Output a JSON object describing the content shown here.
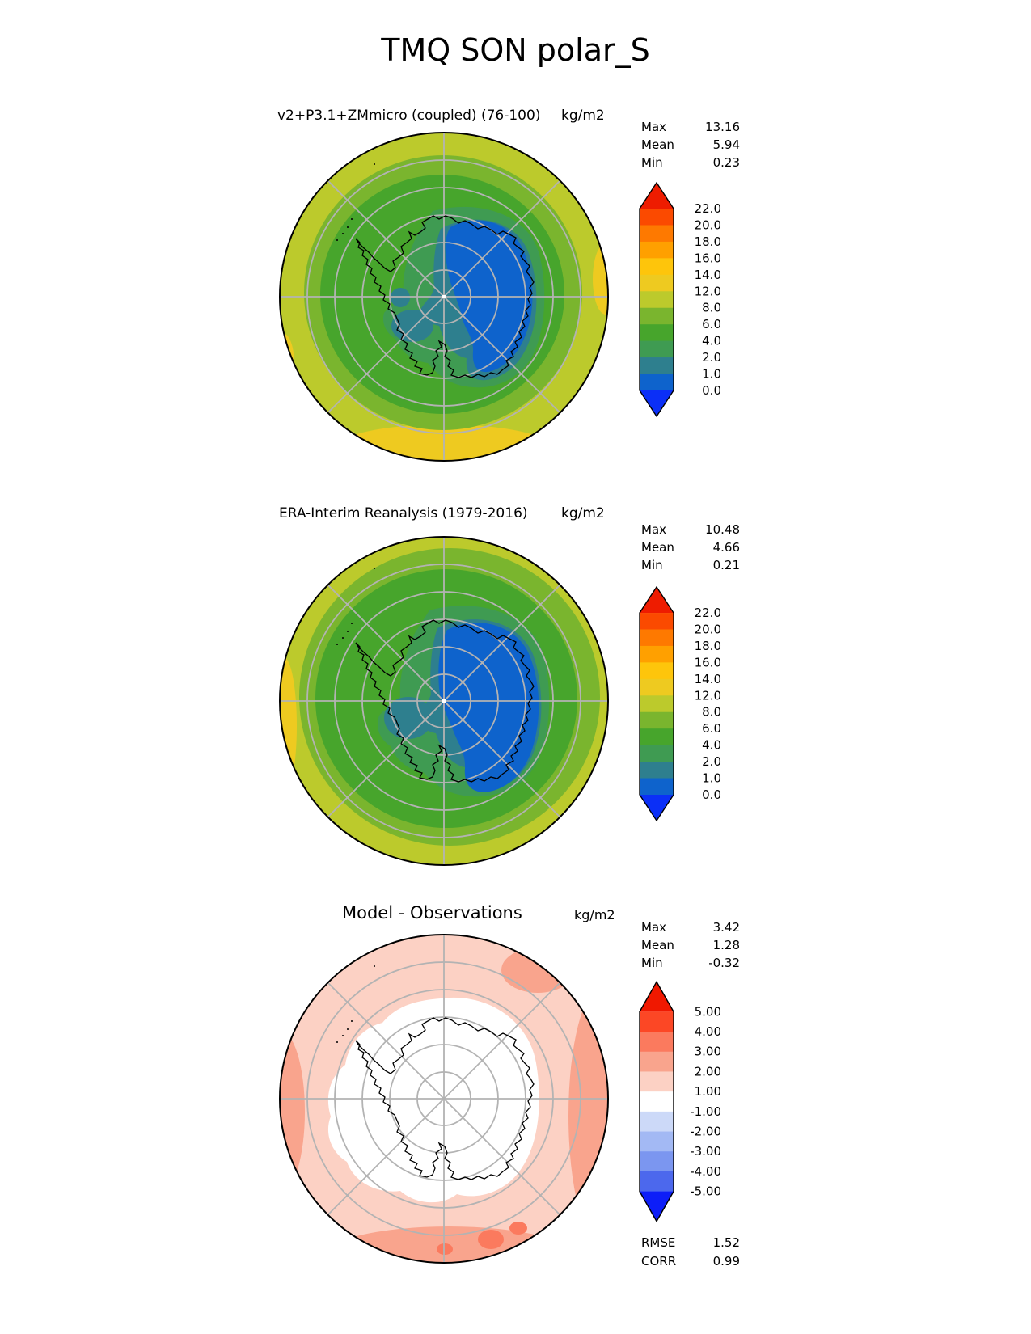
{
  "title": "TMQ SON polar_S",
  "panels": [
    {
      "title": "v2+P3.1+ZMmicro (coupled) (76-100)",
      "units": "kg/m2",
      "stats": {
        "max_label": "Max",
        "max": "13.16",
        "mean_label": "Mean",
        "mean": "5.94",
        "min_label": "Min",
        "min": "0.23"
      }
    },
    {
      "title": "ERA-Interim Reanalysis (1979-2016)",
      "units": "kg/m2",
      "stats": {
        "max_label": "Max",
        "max": "10.48",
        "mean_label": "Mean",
        "mean": "4.66",
        "min_label": "Min",
        "min": "0.21"
      }
    },
    {
      "title": "Model - Observations",
      "units": "kg/m2",
      "stats": {
        "max_label": "Max",
        "max": "3.42",
        "mean_label": "Mean",
        "mean": "1.28",
        "min_label": "Min",
        "min": "-0.32"
      },
      "metrics": {
        "rmse_label": "RMSE",
        "rmse": "1.52",
        "corr_label": "CORR",
        "corr": "0.99"
      }
    }
  ],
  "chart_data": [
    {
      "type": "heatmap",
      "subtype": "south-polar-stereographic-contour-map",
      "variable": "TMQ",
      "season": "SON",
      "region": "polar_S",
      "title": "v2+P3.1+ZMmicro (coupled) (76-100)",
      "units": "kg/m2",
      "stats": {
        "Max": 13.16,
        "Mean": 5.94,
        "Min": 0.23
      },
      "colorbar": {
        "boundaries": [
          0,
          1,
          2,
          4,
          6,
          8,
          12,
          14,
          16,
          18,
          20,
          22
        ],
        "tick_labels": [
          "22.0",
          "20.0",
          "18.0",
          "16.0",
          "14.0",
          "12.0",
          "8.0",
          "6.0",
          "4.0",
          "2.0",
          "1.0",
          "0.0"
        ],
        "colors": [
          "#0e63cc",
          "#2e7f8e",
          "#3f9b52",
          "#47a52c",
          "#7ab52e",
          "#bcca2c",
          "#eeca20",
          "#fec50b",
          "#ffa000",
          "#fe7900",
          "#fb4a00"
        ],
        "extend_under": "#0b2ff7",
        "extend_over": "#ee1c00"
      }
    },
    {
      "type": "heatmap",
      "subtype": "south-polar-stereographic-contour-map",
      "variable": "TMQ",
      "season": "SON",
      "region": "polar_S",
      "title": "ERA-Interim Reanalysis (1979-2016)",
      "units": "kg/m2",
      "stats": {
        "Max": 10.48,
        "Mean": 4.66,
        "Min": 0.21
      },
      "colorbar": {
        "boundaries": [
          0,
          1,
          2,
          4,
          6,
          8,
          12,
          14,
          16,
          18,
          20,
          22
        ],
        "tick_labels": [
          "22.0",
          "20.0",
          "18.0",
          "16.0",
          "14.0",
          "12.0",
          "8.0",
          "6.0",
          "4.0",
          "2.0",
          "1.0",
          "0.0"
        ],
        "colors": [
          "#0e63cc",
          "#2e7f8e",
          "#3f9b52",
          "#47a52c",
          "#7ab52e",
          "#bcca2c",
          "#eeca20",
          "#fec50b",
          "#ffa000",
          "#fe7900",
          "#fb4a00"
        ],
        "extend_under": "#0b2ff7",
        "extend_over": "#ee1c00"
      }
    },
    {
      "type": "heatmap",
      "subtype": "south-polar-stereographic-contour-map-difference",
      "variable": "TMQ",
      "season": "SON",
      "region": "polar_S",
      "title": "Model - Observations",
      "units": "kg/m2",
      "stats": {
        "Max": 3.42,
        "Mean": 1.28,
        "Min": -0.32,
        "RMSE": 1.52,
        "CORR": 0.99
      },
      "colorbar": {
        "boundaries": [
          -5,
          -4,
          -3,
          -2,
          -1,
          1,
          2,
          3,
          4,
          5
        ],
        "tick_labels": [
          "5.00",
          "4.00",
          "3.00",
          "2.00",
          "1.00",
          "-1.00",
          "-2.00",
          "-3.00",
          "-4.00",
          "-5.00"
        ],
        "colors": [
          "#4c68ed",
          "#7b96f0",
          "#a3b9f4",
          "#ccd9f8",
          "#ffffff",
          "#fcd1c4",
          "#f9a48d",
          "#fb7a5e",
          "#fc4725"
        ],
        "extend_under": "#0d1ef8",
        "extend_over": "#f01800"
      }
    }
  ],
  "graticule_color": "#b3b3b3"
}
